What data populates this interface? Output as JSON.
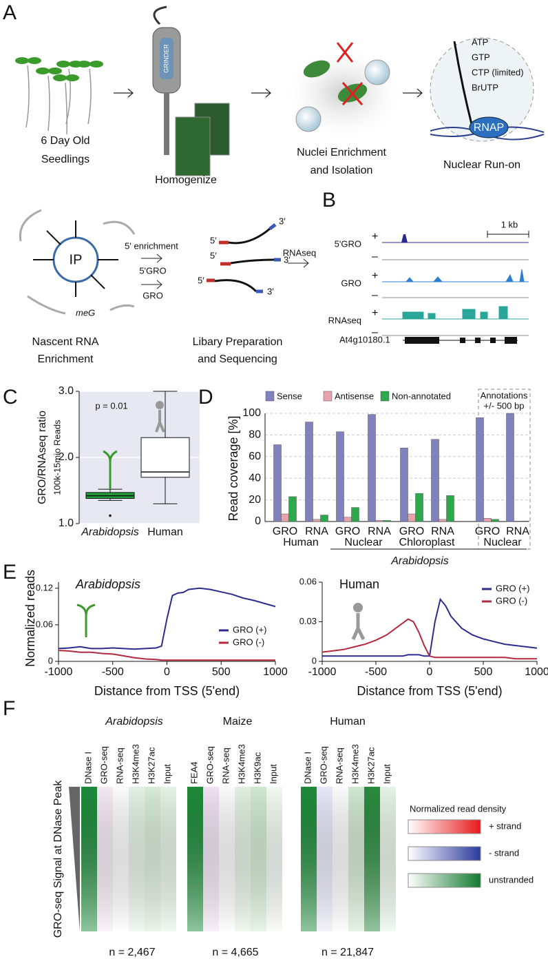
{
  "figure": {
    "panel_labels": [
      "A",
      "B",
      "C",
      "D",
      "E",
      "F"
    ],
    "a": {
      "steps": [
        [
          "6 Day Old",
          "Seedlings"
        ],
        [
          "Homogenize"
        ],
        [
          "Nuclei Enrichment",
          "and Isolation"
        ],
        [
          "Nuclear Run-on"
        ]
      ],
      "grinder": "GRINDER",
      "nucleotides": [
        "ATP",
        "GTP",
        "CTP (limited)",
        "BrUTP"
      ],
      "rnap": "RNAP"
    },
    "b": {
      "steps": [
        [
          "Nascent RNA",
          "Enrichment"
        ],
        [
          "Libary Preparation",
          "and Sequencing"
        ]
      ],
      "ip": "IP",
      "meg": "meG",
      "arrow_labels": [
        "5' enrichment",
        "5'GRO",
        "GRO",
        "RNAseq"
      ],
      "strand_ends": [
        "3′",
        "5′",
        "5′",
        "3′",
        "5′",
        "3′"
      ],
      "tracks": [
        "5'GRO",
        "GRO",
        "RNAseq"
      ],
      "plus": "+",
      "minus": "–",
      "scale": "1 kb",
      "gene": "At4g10180.1"
    },
    "f": {
      "species": [
        "Arabidopsis",
        "Maize",
        "Human"
      ],
      "columns": [
        [
          "DNase I",
          "GRO-seq",
          "RNA-seq",
          "H3K4me3",
          "H3K27ac",
          "Input"
        ],
        [
          "FEA4",
          "GRO-seq",
          "RNA-seq",
          "H3K4me3",
          "H3K9ac",
          "Input"
        ],
        [
          "DNase I",
          "GRO-seq",
          "RNA-seq",
          "H3K4me3",
          "H3K27ac",
          "Input"
        ]
      ],
      "ylabel": "GRO-seq Signal at DNase Peak",
      "n": [
        "n = 2,467",
        "n = 4,665",
        "n = 21,847"
      ],
      "legend_title": "Normalized read density",
      "legend": [
        "+ strand",
        "- strand",
        "unstranded"
      ]
    }
  },
  "chart_data": [
    {
      "type": "box",
      "ylabel_lines": [
        "GRO/RNAseq ratio",
        "100k-15mio Reads"
      ],
      "categories": [
        "Arabidopsis",
        "Human"
      ],
      "colors": [
        "#1e9e3a",
        "#ffffff"
      ],
      "boxes": [
        {
          "whislo": 1.35,
          "q1": 1.38,
          "med": 1.42,
          "q3": 1.47,
          "whishi": 1.52,
          "fliers": [
            1.12
          ]
        },
        {
          "whislo": 1.3,
          "q1": 1.7,
          "med": 1.78,
          "q3": 2.3,
          "whishi": 3.0,
          "fliers": []
        }
      ],
      "annotation": "p = 0.01",
      "ylim": [
        1,
        3
      ],
      "yticks": [
        {
          "value": 1,
          "label": "1.0"
        },
        {
          "value": 2,
          "label": "2.0"
        },
        {
          "value": 3,
          "label": "3.0"
        }
      ],
      "grid": true
    },
    {
      "type": "bar",
      "ylabel": "Read coverage [%]",
      "categories": [
        "GRO",
        "RNA",
        "GRO",
        "RNA",
        "GRO",
        "RNA",
        "GRO",
        "RNA"
      ],
      "series": [
        {
          "name": "Sense",
          "color": "#7f82bd",
          "values": [
            71,
            92,
            83,
            99,
            68,
            76,
            96,
            100
          ]
        },
        {
          "name": "Antisense",
          "color": "#e6a3ab",
          "values": [
            7,
            2,
            4,
            1,
            7,
            2,
            3,
            0.5
          ]
        },
        {
          "name": "Non-annotated",
          "color": "#2ea84c",
          "values": [
            23,
            6,
            13,
            1,
            26,
            24,
            2,
            0.5
          ]
        }
      ],
      "group_labels": [
        "Human",
        "Nuclear",
        "Chloroplast",
        "Nuclear"
      ],
      "organism": "Arabidopsis",
      "boxed_note": [
        "Annotations",
        "+/- 500 bp"
      ],
      "ylim": [
        0,
        100
      ],
      "yticks": [
        0,
        20,
        40,
        60,
        80,
        100
      ],
      "grid": true
    },
    {
      "type": "line",
      "title": "Arabidopsis",
      "ylabel": "Normalized reads",
      "xlabel": "Distance from TSS (5'end)",
      "x": [
        -1000,
        -900,
        -800,
        -700,
        -600,
        -500,
        -400,
        -300,
        -200,
        -100,
        -50,
        0,
        50,
        100,
        150,
        200,
        300,
        400,
        500,
        600,
        700,
        800,
        900,
        1000
      ],
      "series": [
        {
          "name": "GRO (+)",
          "color": "#2b2b8f",
          "values": [
            0.021,
            0.022,
            0.024,
            0.021,
            0.021,
            0.022,
            0.021,
            0.02,
            0.021,
            0.022,
            0.025,
            0.07,
            0.108,
            0.112,
            0.113,
            0.118,
            0.12,
            0.118,
            0.114,
            0.11,
            0.104,
            0.1,
            0.095,
            0.09
          ]
        },
        {
          "name": "GRO (-)",
          "color": "#b2283c",
          "values": [
            0.018,
            0.017,
            0.015,
            0.015,
            0.013,
            0.012,
            0.009,
            0.006,
            0.004,
            0.003,
            0.002,
            0.002,
            0.002,
            0.002,
            0.002,
            0.002,
            0.002,
            0.002,
            0.002,
            0.002,
            0.002,
            0.002,
            0.002,
            0.002
          ]
        }
      ],
      "xlim": [
        -1000,
        1000
      ],
      "xticks": [
        -1000,
        -500,
        0,
        500,
        1000
      ],
      "ylim": [
        0,
        0.13
      ],
      "yticks": [
        0,
        0.06,
        0.12
      ]
    },
    {
      "type": "line",
      "title": "Human",
      "xlabel": "Distance from TSS (5'end)",
      "x": [
        -1000,
        -900,
        -800,
        -700,
        -600,
        -500,
        -400,
        -300,
        -250,
        -200,
        -150,
        -100,
        -50,
        0,
        50,
        100,
        150,
        200,
        300,
        400,
        500,
        600,
        700,
        800,
        900,
        1000
      ],
      "series": [
        {
          "name": "GRO (+)",
          "color": "#2b2b8f",
          "values": [
            0.004,
            0.004,
            0.004,
            0.004,
            0.004,
            0.004,
            0.004,
            0.004,
            0.004,
            0.005,
            0.005,
            0.005,
            0.004,
            0.004,
            0.03,
            0.047,
            0.042,
            0.034,
            0.025,
            0.02,
            0.017,
            0.015,
            0.013,
            0.012,
            0.011,
            0.01
          ]
        },
        {
          "name": "GRO (-)",
          "color": "#b2283c",
          "values": [
            0.007,
            0.008,
            0.009,
            0.011,
            0.013,
            0.016,
            0.02,
            0.026,
            0.029,
            0.032,
            0.03,
            0.022,
            0.012,
            0.004,
            0.003,
            0.003,
            0.003,
            0.003,
            0.003,
            0.003,
            0.003,
            0.003,
            0.003,
            0.002,
            0.002,
            0.002
          ]
        }
      ],
      "xlim": [
        -1000,
        1000
      ],
      "xticks": [
        -1000,
        -500,
        0,
        500,
        1000
      ],
      "ylim": [
        0,
        0.06
      ],
      "yticks": [
        0,
        0.03,
        0.06
      ]
    }
  ]
}
